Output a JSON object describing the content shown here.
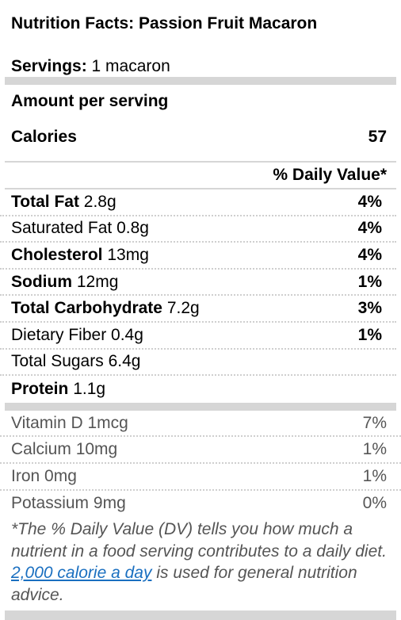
{
  "title": "Nutrition Facts: Passion Fruit Macaron",
  "servings": {
    "label": "Servings:",
    "value": "1 macaron"
  },
  "amount_per_serving": "Amount per serving",
  "calories": {
    "label": "Calories",
    "value": "57"
  },
  "daily_value_header": "% Daily Value*",
  "nutrients": [
    {
      "name": "Total Fat",
      "amount": "2.8g",
      "pct": "4%"
    },
    {
      "name": "Saturated Fat",
      "amount": "0.8g",
      "pct": "4%"
    },
    {
      "name": "Cholesterol",
      "amount": "13mg",
      "pct": "4%"
    },
    {
      "name": "Sodium",
      "amount": "12mg",
      "pct": "1%"
    },
    {
      "name": "Total Carbohydrate",
      "amount": "7.2g",
      "pct": "3%"
    },
    {
      "name": "Dietary Fiber",
      "amount": "0.4g",
      "pct": "1%"
    },
    {
      "name": "Total Sugars",
      "amount": "6.4g",
      "pct": ""
    },
    {
      "name": "Protein",
      "amount": "1.1g",
      "pct": ""
    }
  ],
  "vitamins": [
    {
      "name": "Vitamin D",
      "amount": "1mcg",
      "pct": "7%"
    },
    {
      "name": "Calcium",
      "amount": "10mg",
      "pct": "1%"
    },
    {
      "name": "Iron",
      "amount": "0mg",
      "pct": "1%"
    },
    {
      "name": "Potassium",
      "amount": "9mg",
      "pct": "0%"
    }
  ],
  "footnote": {
    "before": "*The % Daily Value (DV) tells you how much a nutrient in a food serving contributes to a daily diet.",
    "link": "2,000 calorie a day",
    "after": "is used for general nutrition advice."
  },
  "colors": {
    "divider": "#d6d6d6",
    "link": "#1a6fc0",
    "muted_text": "#555555"
  }
}
